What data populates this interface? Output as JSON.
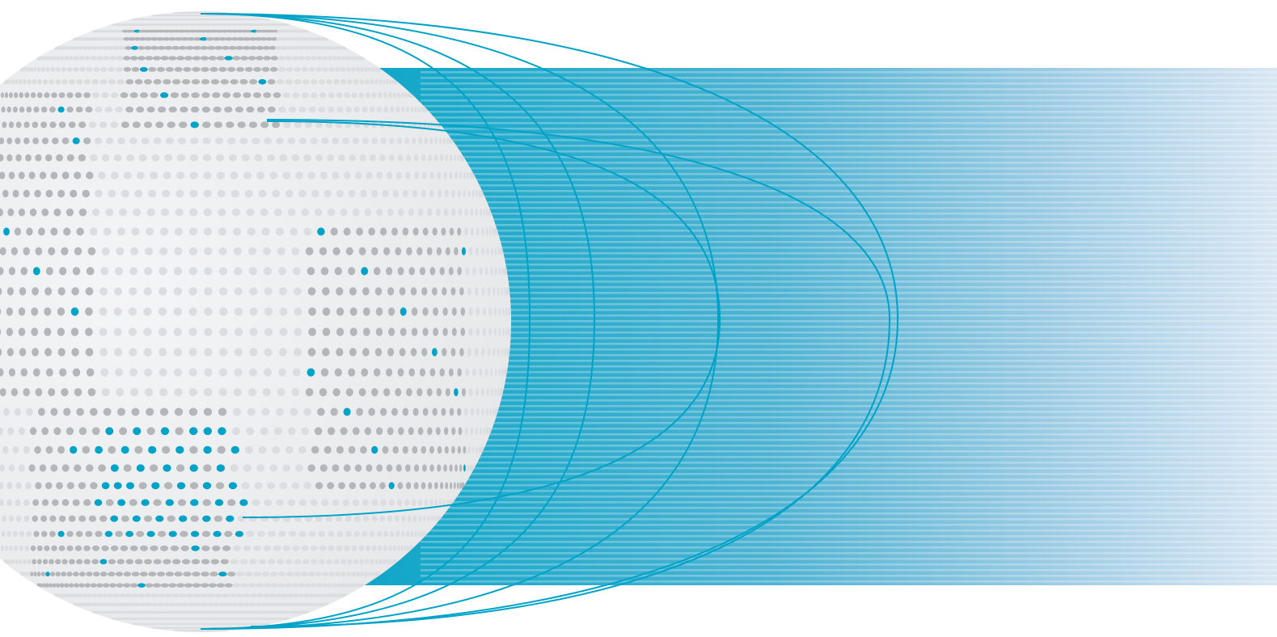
{
  "colors": {
    "accent": "#00a3c8",
    "band_start": "#0fa6c8",
    "band_end": "#d8e6f3",
    "globe_fill": "#f1f2f4",
    "dot_dark": "#b5b6b9",
    "dot_light": "#dcdde0",
    "background": "#ffffff"
  },
  "graphic": {
    "subject": "dotted-globe-with-signal-arcs",
    "arc_count": 6
  }
}
